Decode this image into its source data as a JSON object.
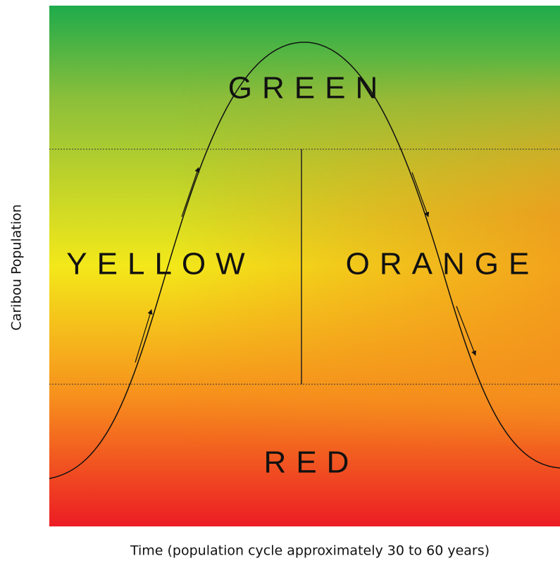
{
  "zones": {
    "green": "GREEN",
    "yellow": "YELLOW",
    "orange": "ORANGE",
    "red": "RED"
  },
  "axes": {
    "y_label": "Caribou Population",
    "x_label": "Time (population cycle approximately 30 to 60 years)"
  }
}
